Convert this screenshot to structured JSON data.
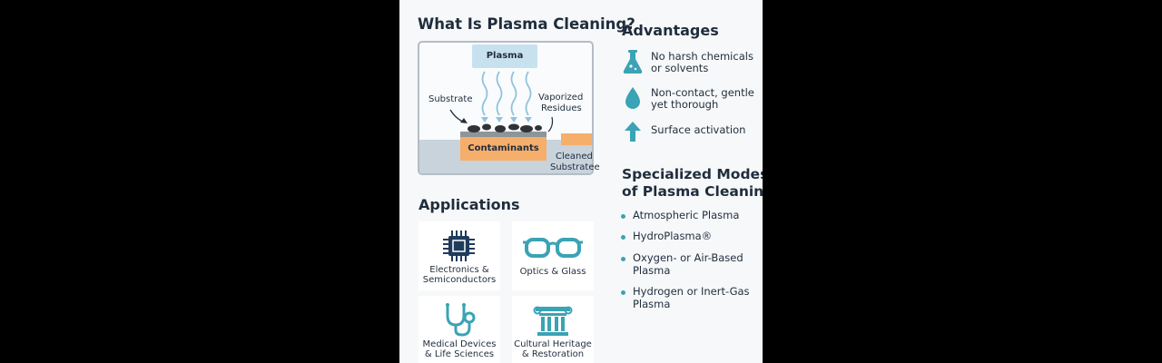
{
  "main_title": "What Is Plasma Cleaning?",
  "diagram": {
    "plasma": "Plasma",
    "substrate": "Substrate",
    "vaporized_line1": "Vaporized",
    "vaporized_line2": "Residues",
    "contaminants": "Contaminants",
    "cleaned_line1": "Cleaned",
    "cleaned_line2": "Substratee"
  },
  "applications": {
    "title": "Applications",
    "items": [
      {
        "line1": "Electronics &",
        "line2": "Semiconductors",
        "icon": "chip-icon"
      },
      {
        "line1": "Optics & Glass",
        "line2": "",
        "icon": "glasses-icon"
      },
      {
        "line1": "Medical Devices",
        "line2": "& Life Sciences",
        "icon": "stethoscope-icon"
      },
      {
        "line1": "Cultural Heritage",
        "line2": "& Restoration",
        "icon": "column-icon"
      }
    ]
  },
  "advantages": {
    "title": "Advantages",
    "items": [
      {
        "line1": "No harsh chemicals",
        "line2": "or solvents",
        "icon": "flask-icon"
      },
      {
        "line1": "Non-contact, gentle",
        "line2": "yet thorough",
        "icon": "droplet-icon"
      },
      {
        "line1": "Surface activation",
        "line2": "",
        "icon": "arrow-up-icon"
      }
    ]
  },
  "modes": {
    "title_line1": "Specialized Modes",
    "title_line2": "of Plasma Cleaning",
    "items": [
      {
        "line1": "Atmospheric Plasma",
        "line2": ""
      },
      {
        "line1": "HydroPlasma®",
        "line2": ""
      },
      {
        "line1": "Oxygen- or Air-Based",
        "line2": "Plasma"
      },
      {
        "line1": "Hydrogen or Inert-Gas",
        "line2": "Plasma"
      }
    ]
  },
  "colors": {
    "accent": "#3aa3b5",
    "icon_dark": "#1f3b5c",
    "plasma_blue": "#c8e1ef",
    "contaminant_orange": "#f6ae6b"
  }
}
